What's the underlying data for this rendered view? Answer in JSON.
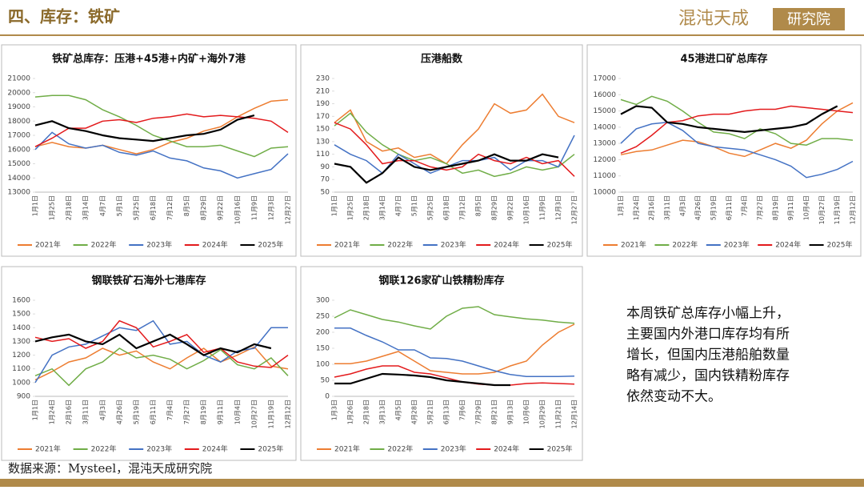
{
  "header": {
    "title": "四、库存：铁矿",
    "brand": "混沌天成",
    "brand_tag": "研究院"
  },
  "note": [
    "本周铁矿总库存小幅上升，",
    "主要国内外港口库存均有所",
    "增长，但国内压港船舶数量",
    "略有减少，国内铁精粉库存",
    "依然变动不大。"
  ],
  "source": "数据来源：Mysteel，混沌天成研究院",
  "chart_data": [
    {
      "type": "line",
      "title": "铁矿总库存：压港+45港+内矿+海外7港",
      "grid": false,
      "categories": [
        "1月1日",
        "1月25日",
        "2月18日",
        "3月14日",
        "4月7日",
        "5月1日",
        "5月25日",
        "6月18日",
        "7月12日",
        "8月5日",
        "8月29日",
        "9月22日",
        "10月16日",
        "11月9日",
        "12月3日",
        "12月27日"
      ],
      "ylim": [
        13000,
        21000
      ],
      "yticks": [
        13000,
        14000,
        15000,
        16000,
        17000,
        18000,
        19000,
        20000,
        21000
      ],
      "series": [
        {
          "name": "2021年",
          "color": "#ed7d31",
          "values": [
            16200,
            16500,
            16200,
            16100,
            16300,
            16000,
            15700,
            16000,
            16500,
            16800,
            17300,
            17600,
            18300,
            18900,
            19400,
            19500
          ]
        },
        {
          "name": "2022年",
          "color": "#70ad47",
          "values": [
            19700,
            19800,
            19800,
            19500,
            18800,
            18300,
            17700,
            17000,
            16600,
            16200,
            16200,
            16300,
            15900,
            15500,
            16100,
            16200
          ]
        },
        {
          "name": "2023年",
          "color": "#4472c4",
          "values": [
            16000,
            17200,
            16400,
            16100,
            16300,
            15800,
            15600,
            15900,
            15400,
            15200,
            14700,
            14500,
            14000,
            14300,
            14600,
            15700
          ]
        },
        {
          "name": "2024年",
          "color": "#e31a1c",
          "values": [
            16200,
            16800,
            17500,
            17500,
            18000,
            18100,
            17900,
            18200,
            18300,
            18500,
            18300,
            18400,
            18300,
            18200,
            18000,
            17200
          ]
        },
        {
          "name": "2025年",
          "color": "#000000",
          "values": [
            17700,
            18000,
            17500,
            17300,
            17000,
            16800,
            16700,
            16600,
            16800,
            17000,
            17100,
            17400,
            18100,
            18400,
            null,
            null
          ]
        }
      ]
    },
    {
      "type": "line",
      "title": "压港船数",
      "grid": false,
      "categories": [
        "1月1日",
        "1月25日",
        "2月18日",
        "3月14日",
        "4月7日",
        "5月1日",
        "5月25日",
        "6月18日",
        "7月12日",
        "8月5日",
        "8月29日",
        "9月22日",
        "10月16日",
        "11月9日",
        "12月3日",
        "12月27日"
      ],
      "ylim": [
        50,
        230
      ],
      "yticks": [
        50,
        70,
        90,
        110,
        130,
        150,
        170,
        190,
        210,
        230
      ],
      "series": [
        {
          "name": "2021年",
          "color": "#ed7d31",
          "values": [
            160,
            180,
            130,
            115,
            120,
            105,
            110,
            95,
            125,
            150,
            190,
            175,
            180,
            205,
            170,
            160
          ]
        },
        {
          "name": "2022年",
          "color": "#70ad47",
          "values": [
            155,
            175,
            145,
            125,
            110,
            100,
            105,
            95,
            80,
            85,
            75,
            80,
            90,
            85,
            90,
            110
          ]
        },
        {
          "name": "2023年",
          "color": "#4472c4",
          "values": [
            125,
            110,
            100,
            80,
            110,
            95,
            80,
            90,
            100,
            100,
            105,
            85,
            100,
            100,
            90,
            140
          ]
        },
        {
          "name": "2024年",
          "color": "#e31a1c",
          "values": [
            160,
            150,
            125,
            95,
            100,
            100,
            90,
            85,
            90,
            110,
            100,
            95,
            105,
            95,
            100,
            75
          ]
        },
        {
          "name": "2025年",
          "color": "#000000",
          "values": [
            95,
            90,
            65,
            80,
            105,
            90,
            85,
            90,
            95,
            100,
            110,
            100,
            100,
            110,
            105,
            null
          ]
        }
      ]
    },
    {
      "type": "line",
      "title": "45港进口矿总库存",
      "grid": false,
      "categories": [
        "1月1日",
        "1月24日",
        "2月16日",
        "3月11日",
        "4月3日",
        "4月26日",
        "5月19日",
        "6月11日",
        "7月4日",
        "7月27日",
        "8月19日",
        "9月11日",
        "10月4日",
        "10月27日",
        "11月19日",
        "12月12日"
      ],
      "ylim": [
        10000,
        17000
      ],
      "yticks": [
        10000,
        11000,
        12000,
        13000,
        14000,
        15000,
        16000,
        17000
      ],
      "series": [
        {
          "name": "2021年",
          "color": "#ed7d31",
          "values": [
            12300,
            12500,
            12600,
            12900,
            13200,
            13100,
            12800,
            12400,
            12200,
            12600,
            13000,
            12700,
            13200,
            14200,
            15000,
            15500
          ]
        },
        {
          "name": "2022年",
          "color": "#70ad47",
          "values": [
            15700,
            15400,
            15900,
            15600,
            15000,
            14300,
            13700,
            13600,
            13300,
            13900,
            13600,
            13000,
            12900,
            13300,
            13300,
            13200
          ]
        },
        {
          "name": "2023年",
          "color": "#4472c4",
          "values": [
            13000,
            13900,
            14200,
            14300,
            13800,
            13000,
            12800,
            12700,
            12600,
            12300,
            12000,
            11600,
            10900,
            11100,
            11400,
            11900
          ]
        },
        {
          "name": "2024年",
          "color": "#e31a1c",
          "values": [
            12400,
            12800,
            13500,
            14300,
            14400,
            14700,
            14800,
            14800,
            15000,
            15100,
            15100,
            15300,
            15200,
            15100,
            15000,
            14900
          ]
        },
        {
          "name": "2025年",
          "color": "#000000",
          "values": [
            14800,
            15300,
            15200,
            14300,
            14200,
            14000,
            13900,
            13800,
            13700,
            13800,
            13900,
            14000,
            14200,
            14800,
            15300,
            null
          ]
        }
      ]
    },
    {
      "type": "line",
      "title": "钢联铁矿石海外七港库存",
      "grid": false,
      "categories": [
        "1月1日",
        "1月24日",
        "2月16日",
        "3月11日",
        "4月3日",
        "4月26日",
        "5月19日",
        "6月11日",
        "7月4日",
        "7月27日",
        "8月19日",
        "9月11日",
        "10月4日",
        "10月27日",
        "11月19日",
        "12月12日"
      ],
      "ylim": [
        900,
        1600
      ],
      "yticks": [
        900,
        1000,
        1100,
        1200,
        1300,
        1400,
        1500,
        1600
      ],
      "series": [
        {
          "name": "2021年",
          "color": "#ed7d31",
          "values": [
            1020,
            1080,
            1150,
            1180,
            1250,
            1200,
            1230,
            1150,
            1100,
            1180,
            1250,
            1150,
            1200,
            1260,
            1120,
            1100
          ]
        },
        {
          "name": "2022年",
          "color": "#70ad47",
          "values": [
            1050,
            1100,
            980,
            1100,
            1150,
            1250,
            1180,
            1200,
            1170,
            1100,
            1160,
            1240,
            1130,
            1100,
            1180,
            1050
          ]
        },
        {
          "name": "2023年",
          "color": "#4472c4",
          "values": [
            1000,
            1200,
            1260,
            1280,
            1340,
            1400,
            1380,
            1450,
            1280,
            1300,
            1200,
            1150,
            1230,
            1250,
            1400,
            1400
          ]
        },
        {
          "name": "2024年",
          "color": "#e31a1c",
          "values": [
            1330,
            1300,
            1320,
            1250,
            1300,
            1450,
            1400,
            1260,
            1300,
            1350,
            1220,
            1250,
            1150,
            1120,
            1110,
            1200
          ]
        },
        {
          "name": "2025年",
          "color": "#000000",
          "values": [
            1300,
            1330,
            1350,
            1300,
            1280,
            1350,
            1250,
            1300,
            1350,
            1280,
            1200,
            1250,
            1220,
            1280,
            1250,
            null
          ]
        }
      ]
    },
    {
      "type": "line",
      "title": "钢联126家矿山铁精粉库存",
      "grid": false,
      "categories": [
        "1月3日",
        "1月26日",
        "2月18日",
        "3月13日",
        "4月5日",
        "4月28日",
        "5月21日",
        "6月13日",
        "7月6日",
        "7月29日",
        "8月21日",
        "9月13日",
        "10月6日",
        "10月29日",
        "11月21日",
        "12月14日"
      ],
      "ylim": [
        0,
        300
      ],
      "yticks": [
        0,
        50,
        100,
        150,
        200,
        250,
        300
      ],
      "series": [
        {
          "name": "2021年",
          "color": "#ed7d31",
          "values": [
            102,
            102,
            110,
            125,
            140,
            110,
            80,
            75,
            70,
            70,
            75,
            95,
            110,
            160,
            200,
            225
          ]
        },
        {
          "name": "2022年",
          "color": "#70ad47",
          "values": [
            245,
            270,
            255,
            240,
            232,
            220,
            210,
            250,
            275,
            280,
            255,
            248,
            242,
            238,
            232,
            228
          ]
        },
        {
          "name": "2023年",
          "color": "#4472c4",
          "values": [
            213,
            213,
            190,
            170,
            145,
            145,
            120,
            118,
            110,
            95,
            80,
            68,
            62,
            62,
            62,
            63
          ]
        },
        {
          "name": "2024年",
          "color": "#e31a1c",
          "values": [
            60,
            70,
            85,
            95,
            95,
            75,
            70,
            58,
            45,
            38,
            35,
            35,
            40,
            42,
            40,
            38
          ]
        },
        {
          "name": "2025年",
          "color": "#000000",
          "values": [
            40,
            40,
            55,
            70,
            68,
            65,
            60,
            50,
            45,
            40,
            35,
            35,
            null,
            null,
            null,
            null
          ]
        }
      ]
    }
  ]
}
